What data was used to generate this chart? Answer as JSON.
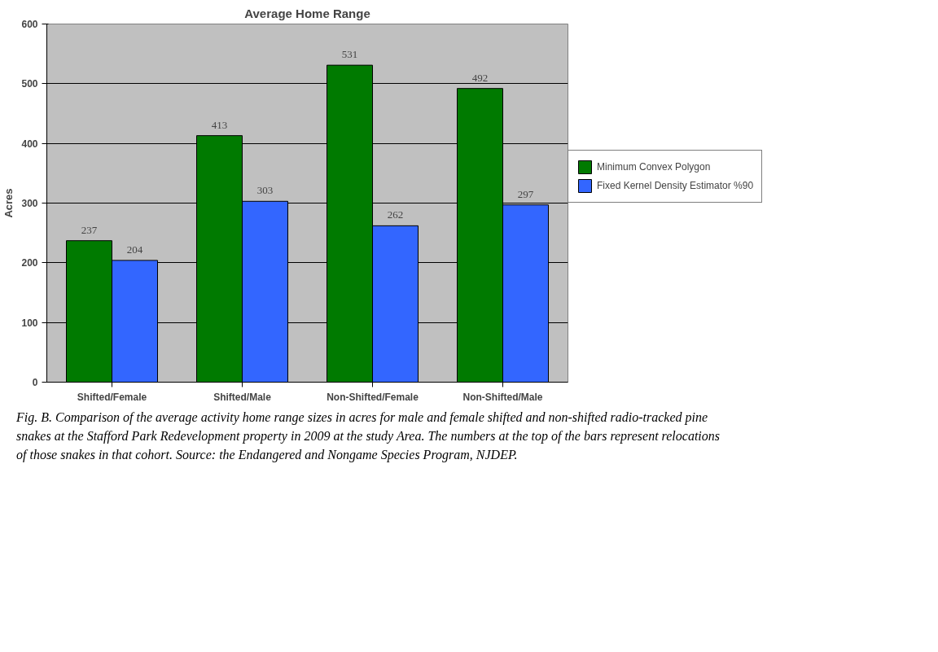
{
  "chart_data": {
    "type": "bar",
    "title": "Average Home Range",
    "ylabel": "Acres",
    "categories": [
      "Shifted/Female",
      "Shifted/Male",
      "Non-Shifted/Female",
      "Non-Shifted/Male"
    ],
    "series": [
      {
        "name": "Minimum Convex Polygon",
        "color": "#007a00",
        "values": [
          237,
          413,
          531,
          492
        ]
      },
      {
        "name": "Fixed Kernel Density Estimator %90",
        "color": "#3366ff",
        "values": [
          204,
          303,
          262,
          297
        ]
      }
    ],
    "ylim": [
      0,
      600
    ],
    "yticks": [
      0,
      100,
      200,
      300,
      400,
      500,
      600
    ],
    "grid": "y",
    "legend": "right",
    "data_labels": true,
    "annotations": [
      "Fig. B. Comparison of the average activity home range sizes in acres for male and female shifted and non-shifted radio-tracked pine snakes at the Stafford Park Redevelopment property in 2009 at the study Area. The numbers at the top of the bars represent relocations of those snakes in that cohort. Source: the Endangered and Nongame Species Program, NJDEP."
    ]
  }
}
